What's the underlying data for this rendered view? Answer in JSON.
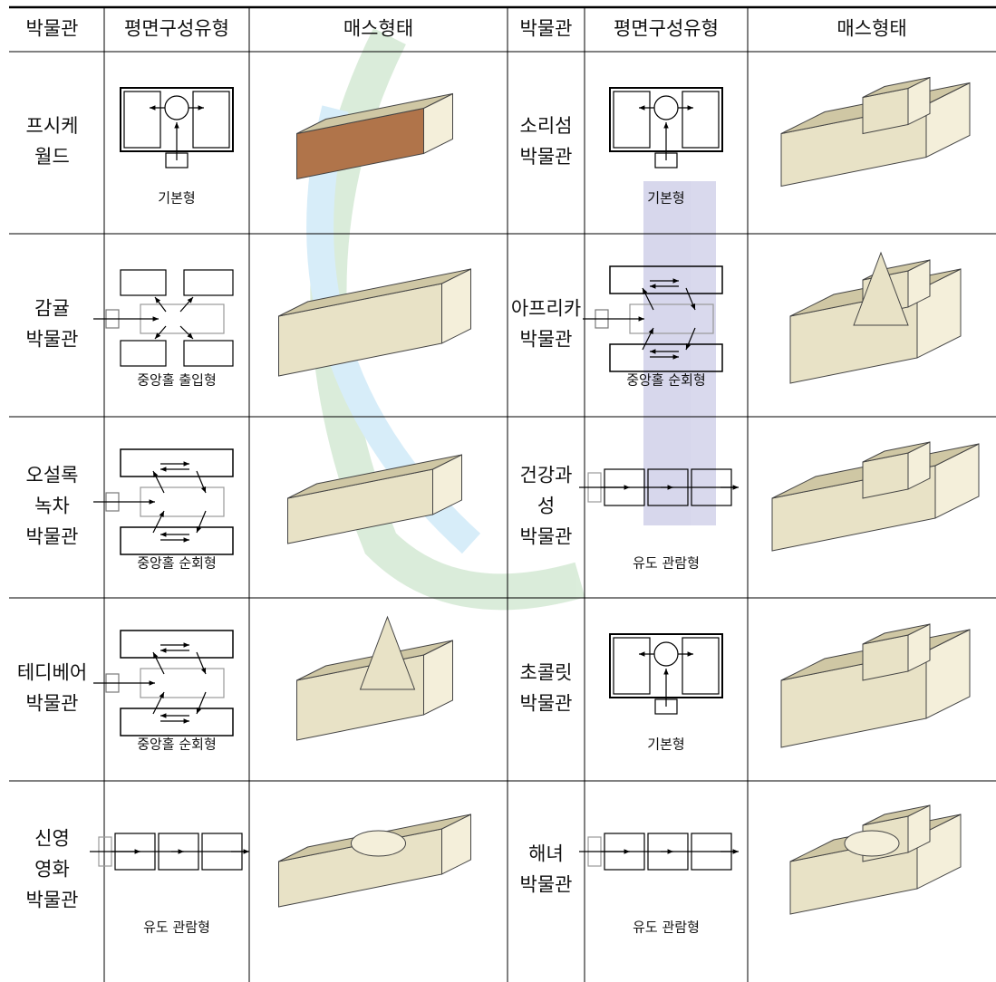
{
  "table": {
    "headers": [
      "박물관",
      "평면구성유형",
      "매스형태",
      "박물관",
      "평면구성유형",
      "매스형태"
    ],
    "rows": [
      {
        "left": {
          "museum": [
            "프시케",
            "월드"
          ],
          "plan_type": "기본형"
        },
        "right": {
          "museum": [
            "소리섬",
            "박물관"
          ],
          "plan_type": "기본형"
        }
      },
      {
        "left": {
          "museum": [
            "감귤",
            "박물관"
          ],
          "plan_type": "중앙홀 출입형"
        },
        "right": {
          "museum": [
            "아프리카",
            "박물관"
          ],
          "plan_type": "중앙홀 순회형"
        }
      },
      {
        "left": {
          "museum": [
            "오설록",
            "녹차",
            "박물관"
          ],
          "plan_type": "중앙홀 순회형"
        },
        "right": {
          "museum": [
            "건강과",
            "성",
            "박물관"
          ],
          "plan_type": "유도 관람형"
        }
      },
      {
        "left": {
          "museum": [
            "테디베어",
            "박물관"
          ],
          "plan_type": "중앙홀 순회형"
        },
        "right": {
          "museum": [
            "초콜릿",
            "박물관"
          ],
          "plan_type": "기본형"
        }
      },
      {
        "left": {
          "museum": [
            "신영",
            "영화",
            "박물관"
          ],
          "plan_type": "유도 관람형"
        },
        "right": {
          "museum": [
            "해녀",
            "박물관"
          ],
          "plan_type": "유도 관람형"
        }
      }
    ]
  }
}
